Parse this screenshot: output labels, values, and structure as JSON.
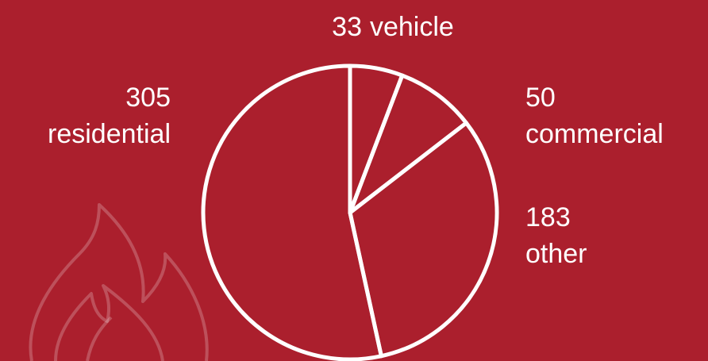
{
  "chart_data": {
    "type": "pie",
    "categories": [
      "vehicle",
      "commercial",
      "other",
      "residential"
    ],
    "values": [
      33,
      50,
      183,
      305
    ],
    "color": "#ffffff",
    "background": "#ab1f2d"
  }
}
